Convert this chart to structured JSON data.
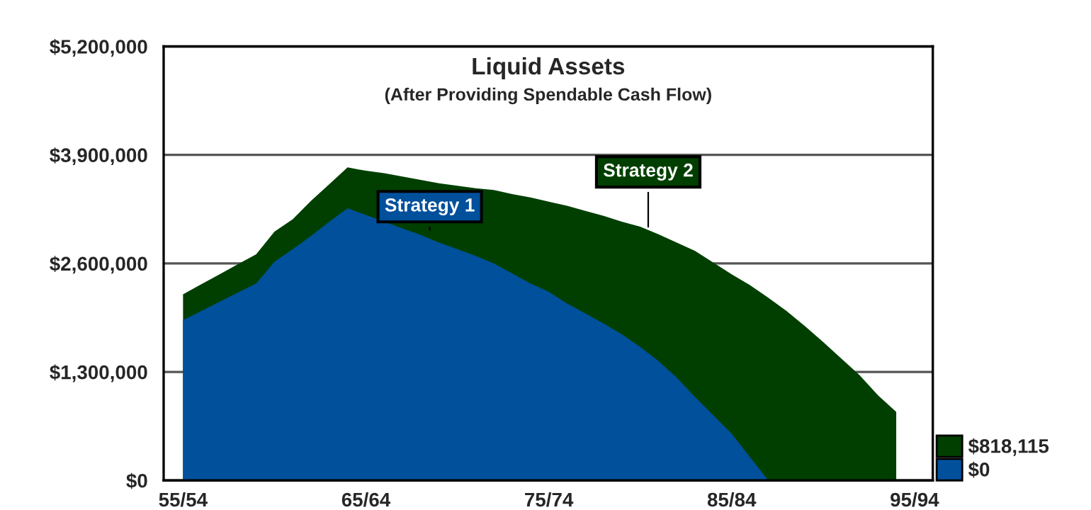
{
  "chart_data": {
    "type": "area",
    "title": "Liquid Assets",
    "subtitle": "(After Providing Spendable Cash Flow)",
    "categories": [
      "55/54",
      null,
      null,
      null,
      null,
      null,
      null,
      null,
      null,
      null,
      "65/64",
      null,
      null,
      null,
      null,
      null,
      null,
      null,
      null,
      null,
      "75/74",
      null,
      null,
      null,
      null,
      null,
      null,
      null,
      null,
      null,
      "85/84",
      null,
      null,
      null,
      null,
      null,
      null,
      null,
      null,
      null,
      "95/94"
    ],
    "ylim": [
      0,
      5200000
    ],
    "yticks": [
      {
        "value": 0,
        "label": "$0"
      },
      {
        "value": 1300000,
        "label": "$1,300,000"
      },
      {
        "value": 2600000,
        "label": "$2,600,000"
      },
      {
        "value": 3900000,
        "label": "$3,900,000"
      },
      {
        "value": 5200000,
        "label": "$5,200,000"
      }
    ],
    "grid": "y",
    "legend": "bottom right",
    "series": [
      {
        "name": "$818,115",
        "color": "#003f00",
        "values": [
          2230000,
          2350000,
          2470000,
          2590000,
          2710000,
          2980000,
          3130000,
          3350000,
          3550000,
          3750000,
          3710000,
          3680000,
          3640000,
          3600000,
          3560000,
          3530000,
          3500000,
          3480000,
          3430000,
          3390000,
          3340000,
          3290000,
          3230000,
          3170000,
          3100000,
          3040000,
          2950000,
          2850000,
          2750000,
          2610000,
          2470000,
          2340000,
          2190000,
          2030000,
          1850000,
          1660000,
          1460000,
          1260000,
          1020000,
          820000,
          null
        ]
      },
      {
        "name": "$0",
        "color": "#00509c",
        "values": [
          1920000,
          2030000,
          2140000,
          2250000,
          2360000,
          2620000,
          2770000,
          2930000,
          3100000,
          3260000,
          3180000,
          3100000,
          3020000,
          2940000,
          2850000,
          2770000,
          2690000,
          2600000,
          2480000,
          2360000,
          2260000,
          2120000,
          2000000,
          1880000,
          1750000,
          1600000,
          1430000,
          1230000,
          1000000,
          780000,
          560000,
          280000,
          0,
          0,
          0,
          0,
          0,
          0,
          0,
          0,
          null
        ]
      }
    ],
    "annotations": [
      {
        "text": "Strategy 1",
        "y": 2950000
      },
      {
        "text": "Strategy 2",
        "y": 2990000
      }
    ]
  }
}
